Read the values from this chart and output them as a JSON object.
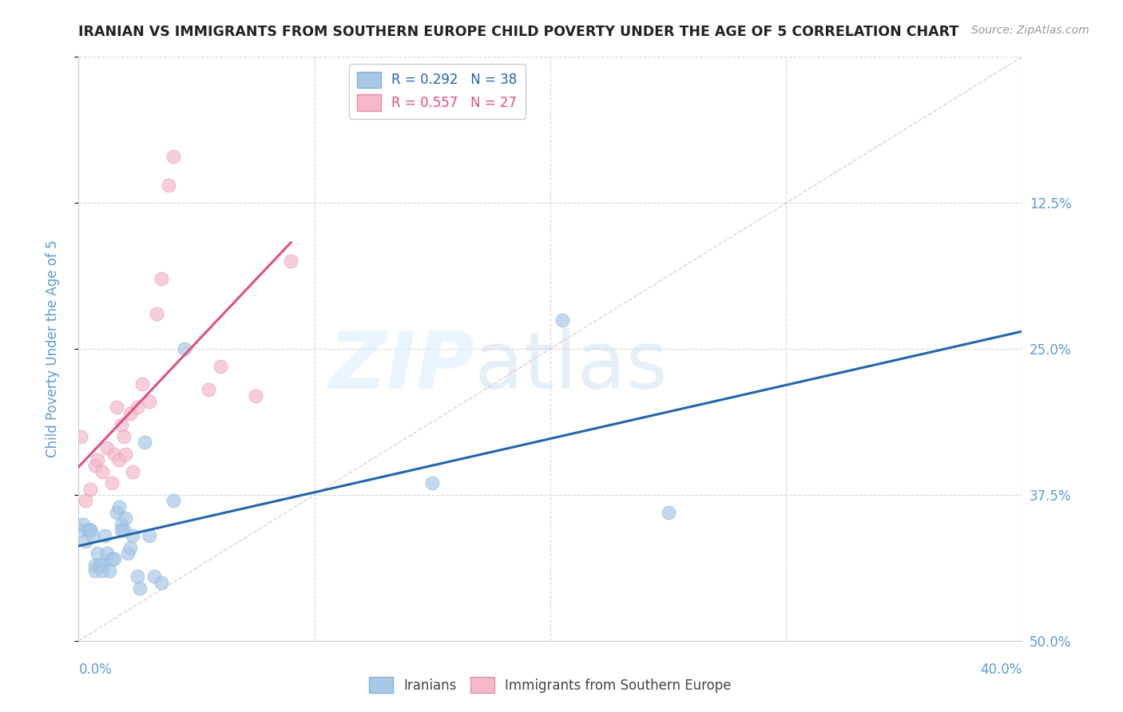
{
  "title": "IRANIAN VS IMMIGRANTS FROM SOUTHERN EUROPE CHILD POVERTY UNDER THE AGE OF 5 CORRELATION CHART",
  "source": "Source: ZipAtlas.com",
  "ylabel": "Child Poverty Under the Age of 5",
  "xlim": [
    0.0,
    0.4
  ],
  "ylim": [
    0.0,
    0.5
  ],
  "yticks": [
    0.0,
    0.125,
    0.25,
    0.375,
    0.5
  ],
  "ytick_labels_right": [
    "50.0%",
    "37.5%",
    "25.0%",
    "12.5%",
    ""
  ],
  "blue_color": "#a8c8e8",
  "pink_color": "#f4b8c8",
  "reg_line1_color": "#2166ac",
  "reg_line2_color": "#e05080",
  "ref_line_color": "#cccccc",
  "watermark_zip": "ZIP",
  "watermark_atlas": "atlas",
  "background_color": "#ffffff",
  "grid_color": "#d8d8d8",
  "title_color": "#222222",
  "source_color": "#999999",
  "axis_label_color": "#5b9bd5",
  "tick_label_color": "#5b9bd5",
  "legend_label1": "Iranians",
  "legend_label2": "Immigrants from Southern Europe",
  "iranians_x": [
    0.001,
    0.002,
    0.003,
    0.004,
    0.005,
    0.005,
    0.006,
    0.007,
    0.007,
    0.008,
    0.009,
    0.01,
    0.01,
    0.011,
    0.012,
    0.013,
    0.014,
    0.015,
    0.016,
    0.017,
    0.018,
    0.018,
    0.019,
    0.02,
    0.021,
    0.022,
    0.023,
    0.025,
    0.026,
    0.028,
    0.03,
    0.032,
    0.035,
    0.04,
    0.045,
    0.15,
    0.205,
    0.25
  ],
  "iranians_y": [
    0.095,
    0.1,
    0.085,
    0.095,
    0.095,
    0.095,
    0.09,
    0.06,
    0.065,
    0.075,
    0.065,
    0.065,
    0.06,
    0.09,
    0.075,
    0.06,
    0.07,
    0.07,
    0.11,
    0.115,
    0.1,
    0.095,
    0.095,
    0.105,
    0.075,
    0.08,
    0.09,
    0.055,
    0.045,
    0.17,
    0.09,
    0.055,
    0.05,
    0.12,
    0.25,
    0.135,
    0.275,
    0.11
  ],
  "south_europe_x": [
    0.001,
    0.003,
    0.005,
    0.007,
    0.008,
    0.01,
    0.012,
    0.014,
    0.015,
    0.016,
    0.017,
    0.018,
    0.019,
    0.02,
    0.022,
    0.023,
    0.025,
    0.027,
    0.03,
    0.033,
    0.035,
    0.038,
    0.04,
    0.055,
    0.06,
    0.075,
    0.09
  ],
  "south_europe_y": [
    0.175,
    0.12,
    0.13,
    0.15,
    0.155,
    0.145,
    0.165,
    0.135,
    0.16,
    0.2,
    0.155,
    0.185,
    0.175,
    0.16,
    0.195,
    0.145,
    0.2,
    0.22,
    0.205,
    0.28,
    0.31,
    0.39,
    0.415,
    0.215,
    0.235,
    0.21,
    0.325
  ]
}
